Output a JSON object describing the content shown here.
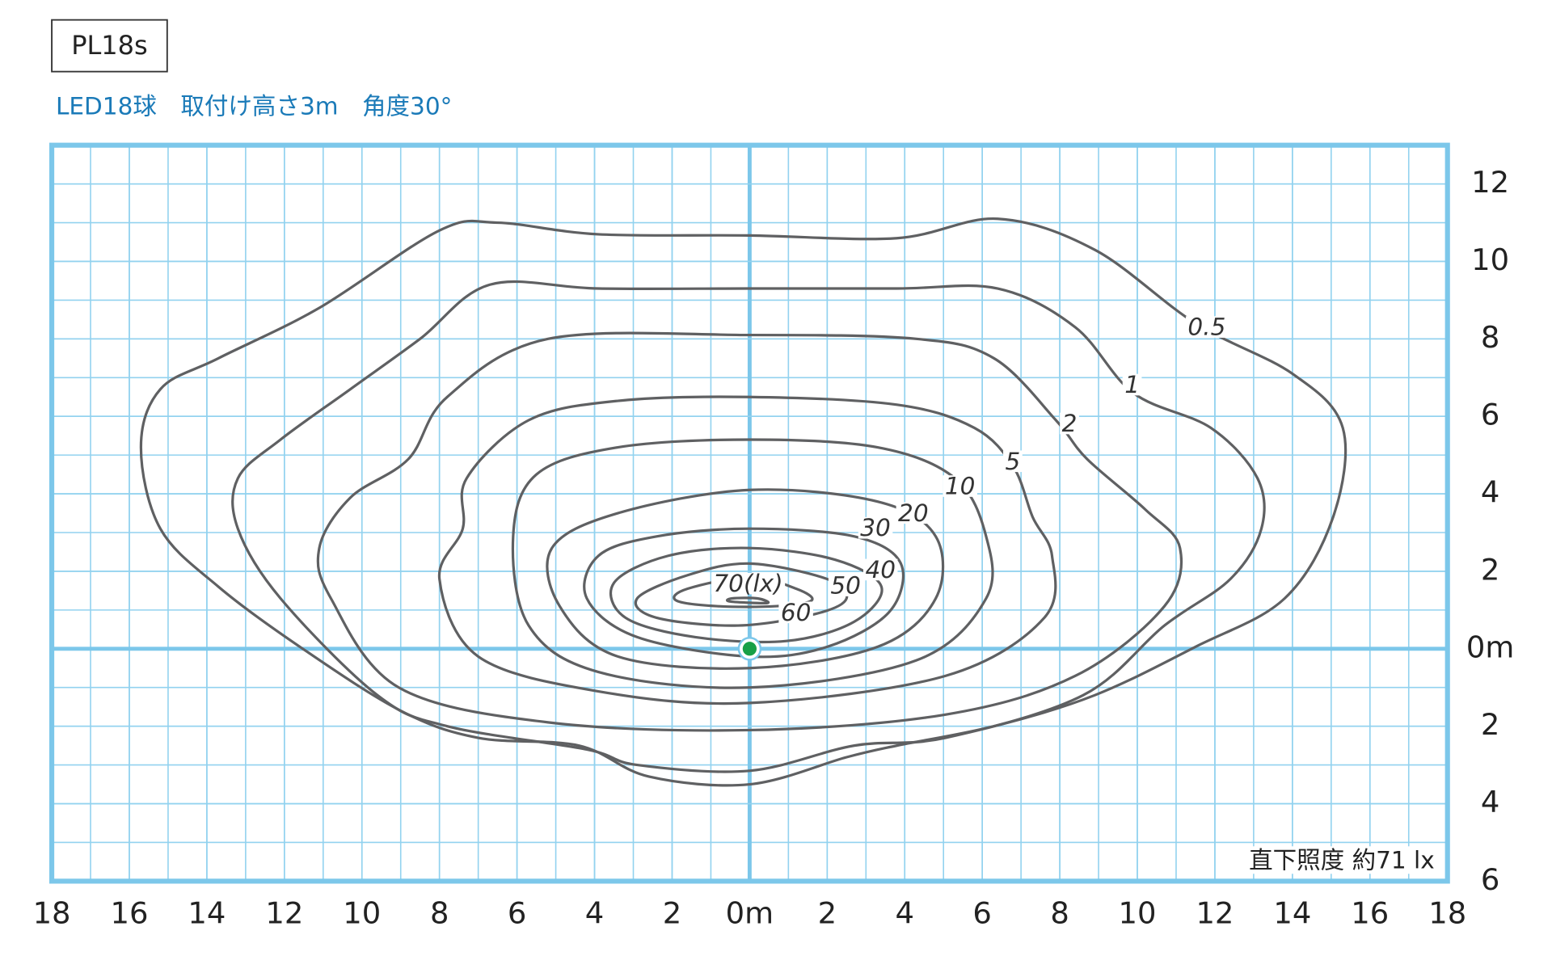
{
  "chart_data": {
    "type": "contour",
    "title": "PL18s",
    "subtitle": "LED18球　取付け高さ3m　角度30°",
    "note": "直下照度 約71 lx",
    "xlim": [
      -18,
      18
    ],
    "ylim": [
      -6,
      13
    ],
    "xticks": [
      {
        "value": -18,
        "label": "18"
      },
      {
        "value": -16,
        "label": "16"
      },
      {
        "value": -14,
        "label": "14"
      },
      {
        "value": -12,
        "label": "12"
      },
      {
        "value": -10,
        "label": "10"
      },
      {
        "value": -8,
        "label": "8"
      },
      {
        "value": -6,
        "label": "6"
      },
      {
        "value": -4,
        "label": "4"
      },
      {
        "value": -2,
        "label": "2"
      },
      {
        "value": 0,
        "label": "0m"
      },
      2,
      4,
      6,
      8,
      10,
      12,
      14,
      16,
      18
    ],
    "yticks": [
      12,
      10,
      8,
      6,
      4,
      2,
      {
        "value": 0,
        "label": "0m"
      },
      {
        "value": -2,
        "label": "2"
      },
      {
        "value": -4,
        "label": "4"
      },
      {
        "value": -6,
        "label": "6"
      }
    ],
    "grid": true,
    "grid_color": "#92d2ef",
    "axis_color": "#7cc7ea",
    "lamp": {
      "x": 0,
      "y": 0,
      "color": "#17a046"
    },
    "series": [
      {
        "name": "0.5",
        "color": "#5f6062",
        "x": [
          0,
          3.8,
          6.4,
          8.9,
          11.5,
          14,
          15.3,
          15.05,
          13.8,
          11.5,
          8.9,
          6.3,
          3.8,
          2.5,
          0,
          -2.6,
          -4.4,
          -7,
          -9,
          -11.6,
          -13.7,
          -15.2,
          -15.7,
          -15.2,
          -13.7,
          -11.1,
          -8,
          -6.5,
          -3.9
        ],
        "y": [
          10.67,
          10.6,
          11.1,
          10.3,
          8.4,
          7.1,
          5.7,
          3.4,
          1.3,
          0.05,
          -1.2,
          -2,
          -2.5,
          -2.8,
          -3.5,
          -3.3,
          -2.5,
          -2.3,
          -1.6,
          0.05,
          1.6,
          3.1,
          5.2,
          6.7,
          7.5,
          8.8,
          10.8,
          11,
          10.7
        ]
      },
      {
        "name": "1",
        "color": "#5f6062",
        "x": [
          0,
          3.8,
          6.4,
          8.4,
          9.9,
          11.9,
          13.1,
          13.2,
          12.4,
          10.7,
          8.6,
          5.05,
          2.7,
          0,
          -2.9,
          -4.2,
          -7.8,
          -9.6,
          -12.1,
          -13.2,
          -13.2,
          -12.1,
          -10.3,
          -8.5,
          -6.7,
          -3.9
        ],
        "y": [
          9.3,
          9.3,
          9.3,
          8.3,
          6.6,
          5.7,
          4.4,
          3.1,
          1.8,
          0.6,
          -1.2,
          -2.3,
          -2.5,
          -3.15,
          -3,
          -2.6,
          -2,
          -1.2,
          1.3,
          3.1,
          4.4,
          5.4,
          6.7,
          8,
          9.4,
          9.3
        ]
      },
      {
        "name": "2",
        "color": "#5f6062",
        "x": [
          0,
          4.3,
          6.3,
          7.9,
          8.7,
          10.2,
          11.1,
          10.7,
          8.4,
          5.05,
          0,
          -5.2,
          -9.05,
          -10.8,
          -11.1,
          -10.3,
          -8.8,
          -7.8,
          -5.2
        ],
        "y": [
          8.1,
          8,
          7.5,
          5.9,
          4.9,
          3.6,
          2.6,
          1.1,
          -0.7,
          -1.7,
          -2.1,
          -1.9,
          -1,
          1.3,
          2.6,
          3.9,
          4.9,
          6.5,
          8
        ]
      },
      {
        "name": "5",
        "color": "#5f6062",
        "x": [
          0,
          3.8,
          5.8,
          6.8,
          7.3,
          7.8,
          7.6,
          5.05,
          0,
          -3.9,
          -7,
          -8,
          -7.4,
          -7.3,
          -5.7,
          -3.4
        ],
        "y": [
          6.5,
          6.3,
          5.7,
          4.7,
          3.4,
          2.4,
          0.8,
          -0.7,
          -1.4,
          -1.1,
          -0.2,
          1.8,
          3.1,
          4.4,
          5.9,
          6.4
        ]
      },
      {
        "name": "10",
        "color": "#5f6062",
        "x": [
          0,
          3.3,
          5.3,
          6.1,
          6.1,
          4.3,
          0,
          -3.9,
          -5.7,
          -6.1,
          -5.5,
          -3.4
        ],
        "y": [
          5.4,
          5.2,
          4.4,
          2.9,
          1.3,
          -0.3,
          -1,
          -0.6,
          0.6,
          2.9,
          4.5,
          5.2
        ]
      },
      {
        "name": "20",
        "color": "#5f6062",
        "x": [
          0,
          3.3,
          4.8,
          4.8,
          3.3,
          0,
          -3.4,
          -4.9,
          -5.1,
          -3.4
        ],
        "y": [
          4.1,
          3.8,
          2.9,
          1.3,
          0.05,
          -0.5,
          -0.2,
          1.1,
          2.6,
          3.5
        ]
      },
      {
        "name": "30",
        "color": "#5f6062",
        "x": [
          0,
          2.7,
          3.9,
          3.6,
          2,
          0,
          -2.9,
          -4.2,
          -3.9,
          -2.4
        ],
        "y": [
          3.1,
          2.9,
          2.2,
          0.95,
          0.05,
          -0.2,
          0.3,
          1.3,
          2.4,
          2.9
        ]
      },
      {
        "name": "40",
        "color": "#5f6062",
        "x": [
          0,
          2.2,
          3.4,
          2.7,
          0.95,
          -1.4,
          -3.2,
          -3.5,
          -2.1
        ],
        "y": [
          2.6,
          2.3,
          1.6,
          0.7,
          0.2,
          0.3,
          0.8,
          1.7,
          2.4
        ]
      },
      {
        "name": "50",
        "color": "#5f6062",
        "x": [
          0,
          2,
          2.5,
          1.7,
          -0.3,
          -2.4,
          -2.9,
          -1.6
        ],
        "y": [
          2.2,
          1.8,
          1.3,
          0.9,
          0.6,
          0.8,
          1.3,
          1.9
        ]
      },
      {
        "name": "60",
        "color": "#5f6062",
        "x": [
          0,
          1.2,
          1.6,
          0.7,
          -0.85,
          -1.9,
          -1.6
        ],
        "y": [
          1.85,
          1.55,
          1.25,
          1.1,
          1.1,
          1.25,
          1.55
        ]
      },
      {
        "name": "70(lx)",
        "color": "#5f6062",
        "x": [
          -0.5,
          0.45,
          0.2,
          -0.45
        ],
        "y": [
          1.22,
          1.18,
          1.3,
          1.3
        ]
      }
    ]
  }
}
